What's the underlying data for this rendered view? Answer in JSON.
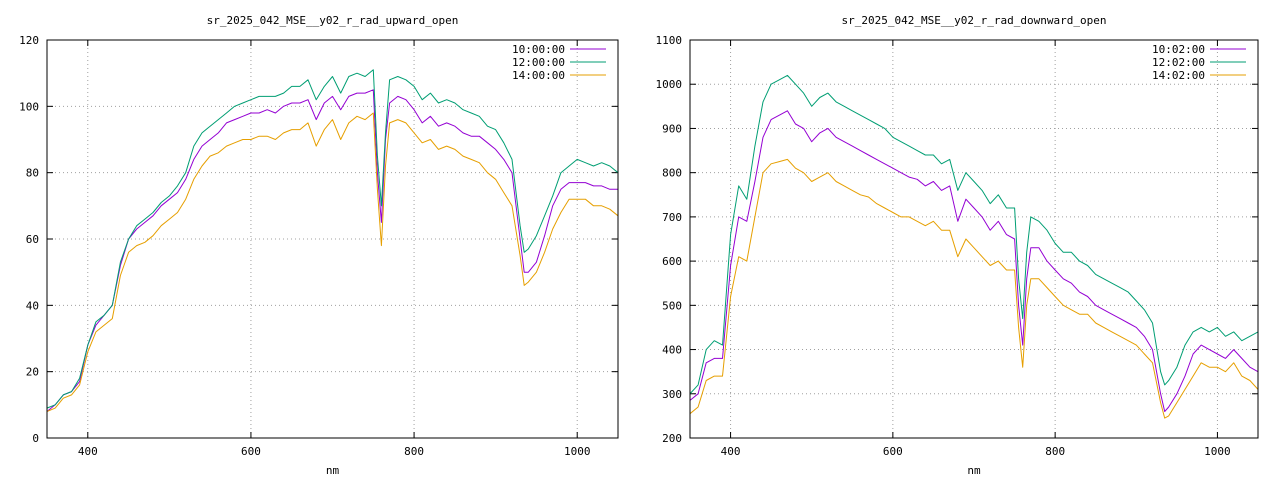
{
  "chart_data": [
    {
      "type": "line",
      "title": "sr_2025_042_MSE__y02_r_rad_upward_open",
      "xlabel": "nm",
      "ylabel": "",
      "xlim": [
        350,
        1050
      ],
      "ylim": [
        0,
        120
      ],
      "xticks": [
        400,
        600,
        800,
        1000
      ],
      "yticks": [
        0,
        20,
        40,
        60,
        80,
        100,
        120
      ],
      "grid": true,
      "legend_position": "top-right",
      "x": [
        350,
        360,
        370,
        380,
        390,
        400,
        410,
        420,
        430,
        440,
        450,
        460,
        470,
        480,
        490,
        500,
        510,
        520,
        530,
        540,
        550,
        560,
        570,
        580,
        590,
        600,
        610,
        620,
        630,
        640,
        650,
        660,
        670,
        680,
        690,
        700,
        710,
        720,
        730,
        740,
        750,
        755,
        760,
        765,
        770,
        780,
        790,
        800,
        810,
        820,
        830,
        840,
        850,
        860,
        870,
        880,
        890,
        900,
        910,
        920,
        930,
        935,
        940,
        950,
        960,
        970,
        980,
        990,
        1000,
        1010,
        1020,
        1030,
        1040,
        1050
      ],
      "series": [
        {
          "name": "10:00:00",
          "color": "#9400d3",
          "values": [
            8,
            10,
            13,
            14,
            17,
            28,
            34,
            37,
            40,
            52,
            60,
            63,
            65,
            67,
            70,
            72,
            74,
            78,
            84,
            88,
            90,
            92,
            95,
            96,
            97,
            98,
            98,
            99,
            98,
            100,
            101,
            101,
            102,
            96,
            101,
            103,
            99,
            103,
            104,
            104,
            105,
            80,
            65,
            90,
            101,
            103,
            102,
            99,
            95,
            97,
            94,
            95,
            94,
            92,
            91,
            91,
            89,
            87,
            84,
            80,
            60,
            50,
            50,
            53,
            61,
            70,
            75,
            77,
            77,
            77,
            76,
            76,
            75,
            75
          ]
        },
        {
          "name": "12:00:00",
          "color": "#009e73",
          "values": [
            9,
            10,
            13,
            14,
            18,
            28,
            35,
            37,
            40,
            53,
            60,
            64,
            66,
            68,
            71,
            73,
            76,
            80,
            88,
            92,
            94,
            96,
            98,
            100,
            101,
            102,
            103,
            103,
            103,
            104,
            106,
            106,
            108,
            102,
            106,
            109,
            104,
            109,
            110,
            109,
            111,
            85,
            70,
            92,
            108,
            109,
            108,
            106,
            102,
            104,
            101,
            102,
            101,
            99,
            98,
            97,
            94,
            93,
            89,
            84,
            64,
            56,
            57,
            61,
            67,
            73,
            80,
            82,
            84,
            83,
            82,
            83,
            82,
            80
          ]
        },
        {
          "name": "14:00:00",
          "color": "#e69f00",
          "values": [
            8,
            9,
            12,
            13,
            16,
            26,
            32,
            34,
            36,
            49,
            56,
            58,
            59,
            61,
            64,
            66,
            68,
            72,
            78,
            82,
            85,
            86,
            88,
            89,
            90,
            90,
            91,
            91,
            90,
            92,
            93,
            93,
            95,
            88,
            93,
            96,
            90,
            95,
            97,
            96,
            98,
            75,
            58,
            82,
            95,
            96,
            95,
            92,
            89,
            90,
            87,
            88,
            87,
            85,
            84,
            83,
            80,
            78,
            74,
            70,
            55,
            46,
            47,
            50,
            56,
            63,
            68,
            72,
            72,
            72,
            70,
            70,
            69,
            67
          ]
        }
      ]
    },
    {
      "type": "line",
      "title": "sr_2025_042_MSE__y02_r_rad_downward_open",
      "xlabel": "nm",
      "ylabel": "",
      "xlim": [
        350,
        1050
      ],
      "ylim": [
        200,
        1100
      ],
      "xticks": [
        400,
        600,
        800,
        1000
      ],
      "yticks": [
        200,
        300,
        400,
        500,
        600,
        700,
        800,
        900,
        1000,
        1100
      ],
      "grid": true,
      "legend_position": "top-right",
      "x": [
        350,
        360,
        370,
        380,
        390,
        400,
        410,
        420,
        430,
        440,
        450,
        460,
        470,
        480,
        490,
        500,
        510,
        520,
        530,
        540,
        550,
        560,
        570,
        580,
        590,
        600,
        610,
        620,
        630,
        640,
        650,
        660,
        670,
        680,
        690,
        700,
        710,
        720,
        730,
        740,
        750,
        755,
        760,
        765,
        770,
        780,
        790,
        800,
        810,
        820,
        830,
        840,
        850,
        860,
        870,
        880,
        890,
        900,
        910,
        920,
        930,
        935,
        940,
        950,
        960,
        970,
        980,
        990,
        1000,
        1010,
        1020,
        1030,
        1040,
        1050
      ],
      "series": [
        {
          "name": "10:02:00",
          "color": "#9400d3",
          "values": [
            285,
            300,
            370,
            380,
            380,
            590,
            700,
            690,
            780,
            880,
            920,
            930,
            940,
            910,
            900,
            870,
            890,
            900,
            880,
            870,
            860,
            850,
            840,
            830,
            820,
            810,
            800,
            790,
            785,
            770,
            780,
            760,
            770,
            690,
            740,
            720,
            700,
            670,
            690,
            660,
            650,
            500,
            410,
            560,
            630,
            630,
            600,
            580,
            560,
            550,
            530,
            520,
            500,
            490,
            480,
            470,
            460,
            450,
            430,
            400,
            300,
            260,
            270,
            300,
            340,
            390,
            410,
            400,
            390,
            380,
            400,
            380,
            360,
            350
          ]
        },
        {
          "name": "12:02:00",
          "color": "#009e73",
          "values": [
            300,
            320,
            400,
            420,
            410,
            660,
            770,
            740,
            860,
            960,
            1000,
            1010,
            1020,
            1000,
            980,
            950,
            970,
            980,
            960,
            950,
            940,
            930,
            920,
            910,
            900,
            880,
            870,
            860,
            850,
            840,
            840,
            820,
            830,
            760,
            800,
            780,
            760,
            730,
            750,
            720,
            720,
            560,
            470,
            620,
            700,
            690,
            670,
            640,
            620,
            620,
            600,
            590,
            570,
            560,
            550,
            540,
            530,
            510,
            490,
            460,
            350,
            320,
            330,
            360,
            410,
            440,
            450,
            440,
            450,
            430,
            440,
            420,
            430,
            440
          ]
        },
        {
          "name": "14:02:00",
          "color": "#e69f00",
          "values": [
            255,
            270,
            330,
            340,
            340,
            520,
            610,
            600,
            700,
            800,
            820,
            825,
            830,
            810,
            800,
            780,
            790,
            800,
            780,
            770,
            760,
            750,
            745,
            730,
            720,
            710,
            700,
            700,
            690,
            680,
            690,
            670,
            670,
            610,
            650,
            630,
            610,
            590,
            600,
            580,
            580,
            450,
            360,
            500,
            560,
            560,
            540,
            520,
            500,
            490,
            480,
            480,
            460,
            450,
            440,
            430,
            420,
            410,
            390,
            370,
            280,
            245,
            250,
            280,
            310,
            340,
            370,
            360,
            360,
            350,
            370,
            340,
            330,
            310
          ]
        }
      ]
    }
  ]
}
